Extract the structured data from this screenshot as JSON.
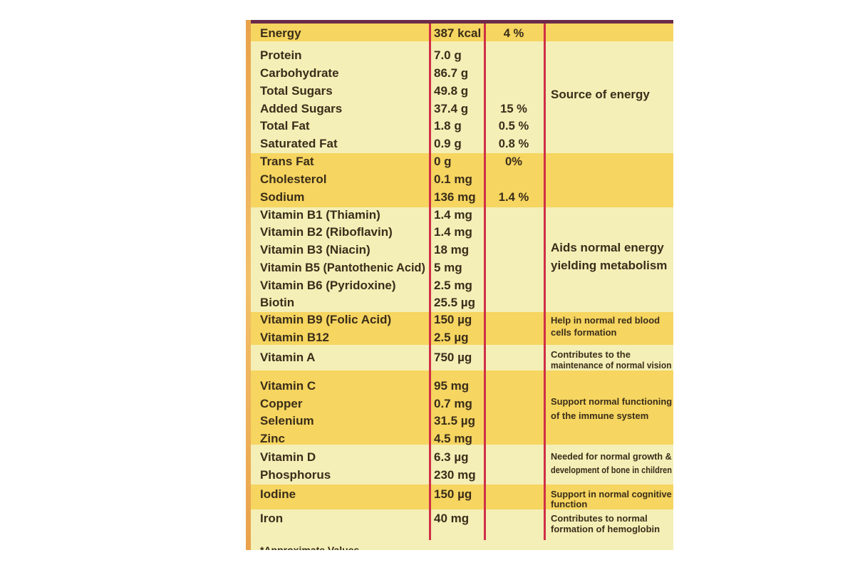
{
  "rows": [
    {
      "nutrient": "Energy",
      "amount": "387 kcal",
      "percent": "4 %"
    },
    {
      "nutrient": "Protein",
      "amount": "7.0 g",
      "percent": ""
    },
    {
      "nutrient": "Carbohydrate",
      "amount": "86.7 g",
      "percent": ""
    },
    {
      "nutrient": "Total Sugars",
      "amount": "49.8 g",
      "percent": ""
    },
    {
      "nutrient": "Added Sugars",
      "amount": "37.4 g",
      "percent": "15 %"
    },
    {
      "nutrient": "Total Fat",
      "amount": "1.8 g",
      "percent": "0.5 %"
    },
    {
      "nutrient": "Saturated Fat",
      "amount": "0.9 g",
      "percent": "0.8 %"
    },
    {
      "nutrient": "Trans Fat",
      "amount": "0 g",
      "percent": "0%"
    },
    {
      "nutrient": "Cholesterol",
      "amount": "0.1 mg",
      "percent": ""
    },
    {
      "nutrient": "Sodium",
      "amount": "136 mg",
      "percent": "1.4 %"
    },
    {
      "nutrient": "Vitamin B1 (Thiamin)",
      "amount": "1.4 mg",
      "percent": ""
    },
    {
      "nutrient": "Vitamin B2 (Riboflavin)",
      "amount": "1.4 mg",
      "percent": ""
    },
    {
      "nutrient": "Vitamin B3 (Niacin)",
      "amount": "18 mg",
      "percent": ""
    },
    {
      "nutrient": "Vitamin B5 (Pantothenic Acid)",
      "amount": "5 mg",
      "percent": ""
    },
    {
      "nutrient": "Vitamin B6 (Pyridoxine)",
      "amount": "2.5 mg",
      "percent": ""
    },
    {
      "nutrient": "Biotin",
      "amount": "25.5 µg",
      "percent": ""
    },
    {
      "nutrient": "Vitamin B9 (Folic Acid)",
      "amount": "150 µg",
      "percent": ""
    },
    {
      "nutrient": "Vitamin B12",
      "amount": "2.5 µg",
      "percent": ""
    },
    {
      "nutrient": "Vitamin A",
      "amount": "750 µg",
      "percent": ""
    },
    {
      "nutrient": "Vitamin C",
      "amount": "95 mg",
      "percent": ""
    },
    {
      "nutrient": "Copper",
      "amount": "0.7 mg",
      "percent": ""
    },
    {
      "nutrient": "Selenium",
      "amount": "31.5 µg",
      "percent": ""
    },
    {
      "nutrient": "Zinc",
      "amount": "4.5 mg",
      "percent": ""
    },
    {
      "nutrient": "Vitamin D",
      "amount": "6.3 µg",
      "percent": ""
    },
    {
      "nutrient": "Phosphorus",
      "amount": "230 mg",
      "percent": ""
    },
    {
      "nutrient": "Iodine",
      "amount": "150 µg",
      "percent": ""
    },
    {
      "nutrient": "Iron",
      "amount": "40 mg",
      "percent": ""
    }
  ],
  "benefits": {
    "energy": "Source of energy",
    "metabolism_1": "Aids normal energy",
    "metabolism_2": "yielding metabolism",
    "red_blood_1": "Help in normal red blood",
    "red_blood_2": "cells formation",
    "vision_1": "Contributes to the",
    "vision_2": "maintenance of normal vision",
    "immune_1": "Support normal functioning",
    "immune_2": "of the immune system",
    "growth_1": "Needed for normal growth &",
    "growth_2": "development of bone in children",
    "cognitive_1": "Support in normal cognitive",
    "cognitive_2": "function",
    "hemoglobin_1": "Contributes to normal",
    "hemoglobin_2": "formation of hemoglobin"
  },
  "footnote": "*Approximate Values",
  "colors": {
    "pale_row": "#f3efb6",
    "yellow_row": "#f6d560",
    "divider": "#cf2f47",
    "text": "#3a2d1a"
  }
}
